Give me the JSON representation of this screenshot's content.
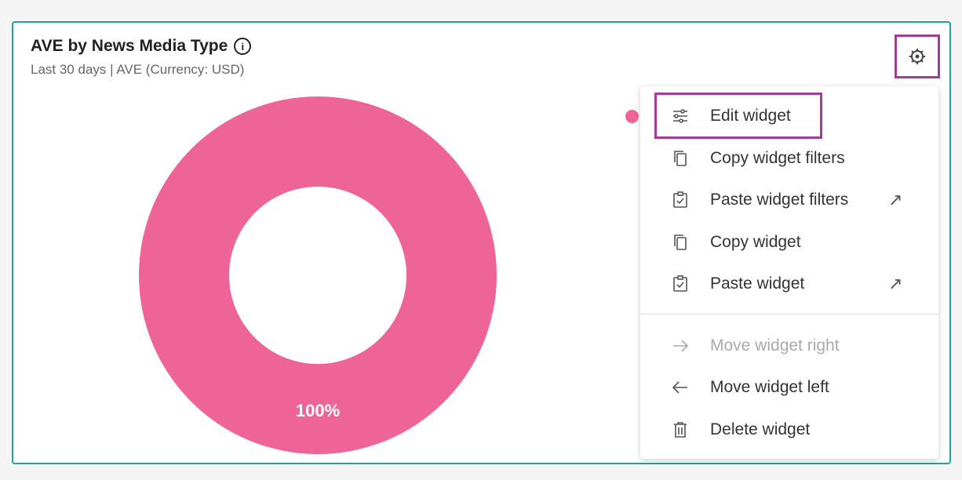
{
  "widget": {
    "title": "AVE by News Media Type",
    "subtitle": "Last 30 days | AVE (Currency: USD)",
    "info_icon": "info-icon",
    "settings_icon": "gear-icon",
    "border_color": "#1fa39a"
  },
  "chart_data": {
    "type": "pie",
    "donut": true,
    "categories": [
      ""
    ],
    "values": [
      100
    ],
    "data_labels": [
      "100%"
    ],
    "colors": [
      "#ef6496"
    ]
  },
  "menu": {
    "items": [
      {
        "label": "Edit widget",
        "icon": "sliders-icon",
        "external": false,
        "disabled": false
      },
      {
        "label": "Copy widget filters",
        "icon": "copy-icon",
        "external": false,
        "disabled": false
      },
      {
        "label": "Paste widget filters",
        "icon": "clipboard-check-icon",
        "external": true,
        "disabled": false
      },
      {
        "label": "Copy widget",
        "icon": "copy-icon",
        "external": false,
        "disabled": false
      },
      {
        "label": "Paste widget",
        "icon": "clipboard-check-icon",
        "external": true,
        "disabled": false
      },
      {
        "label": "Move widget right",
        "icon": "arrow-right-icon",
        "external": false,
        "disabled": true
      },
      {
        "label": "Move widget left",
        "icon": "arrow-left-icon",
        "external": false,
        "disabled": false
      },
      {
        "label": "Delete widget",
        "icon": "trash-icon",
        "external": false,
        "disabled": false
      }
    ]
  },
  "highlight_color": "#a63a98"
}
